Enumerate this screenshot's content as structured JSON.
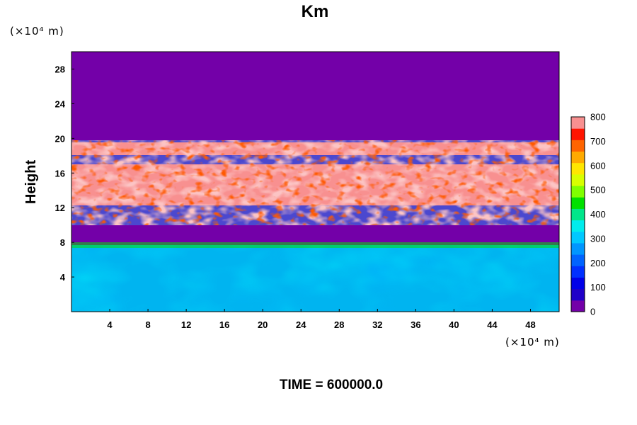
{
  "chart_data": {
    "type": "heatmap",
    "title": "Km",
    "ylabel": "Height",
    "x_unit_label": "(×10⁴ m)",
    "y_unit_label": "(×10⁴ m)",
    "footer": "TIME = 600000.0",
    "xlim": [
      0,
      51
    ],
    "ylim": [
      0,
      30
    ],
    "x_ticks": [
      4,
      8,
      12,
      16,
      20,
      24,
      28,
      32,
      36,
      40,
      44,
      48
    ],
    "y_ticks": [
      4,
      8,
      12,
      16,
      20,
      24,
      28
    ],
    "grid": false,
    "colorbar": {
      "placement": "right",
      "min": 0,
      "max": 800,
      "step": 50,
      "tick_labels": [
        0,
        100,
        200,
        300,
        400,
        500,
        600,
        700,
        800
      ],
      "colors": [
        "#7300a8",
        "#1f00c8",
        "#0000e8",
        "#0030ff",
        "#0064ff",
        "#0096ff",
        "#00c8ff",
        "#00ecec",
        "#00e68a",
        "#00e000",
        "#80ff00",
        "#d8ff00",
        "#ffe600",
        "#ffaa00",
        "#ff6400",
        "#ff1400",
        "#f89090"
      ]
    },
    "regions": [
      {
        "description": "upper layer",
        "y_range": [
          18,
          20
        ],
        "value": "above 800"
      },
      {
        "description": "upper layer",
        "y_range": [
          13,
          17
        ],
        "value": "above 800"
      },
      {
        "description": "upper layer",
        "y_range": [
          10,
          13
        ],
        "value": "mixed 100-800"
      },
      {
        "description": "low layer",
        "y_range": [
          0,
          7.5
        ],
        "value": "100-400"
      },
      {
        "description": "background",
        "y_range": [
          20,
          30
        ],
        "value": "0"
      }
    ]
  }
}
